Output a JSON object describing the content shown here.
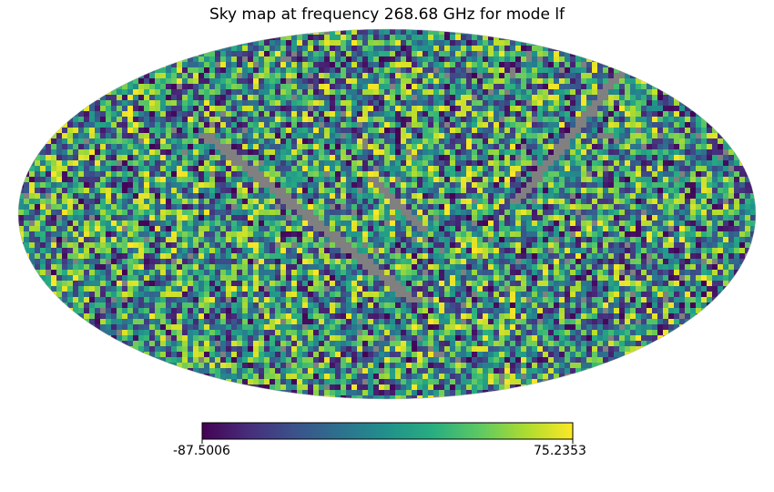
{
  "chart_data": {
    "type": "heatmap",
    "title": "Sky map at frequency 268.68 GHz for mode lf",
    "projection": "mollweide",
    "colormap": "viridis",
    "bad_value_color": "#808080",
    "colorbar": {
      "min": -87.5006,
      "max": 75.2353,
      "min_label": "-87.5006",
      "max_label": "75.2353",
      "orientation": "horizontal"
    },
    "grid": false
  }
}
